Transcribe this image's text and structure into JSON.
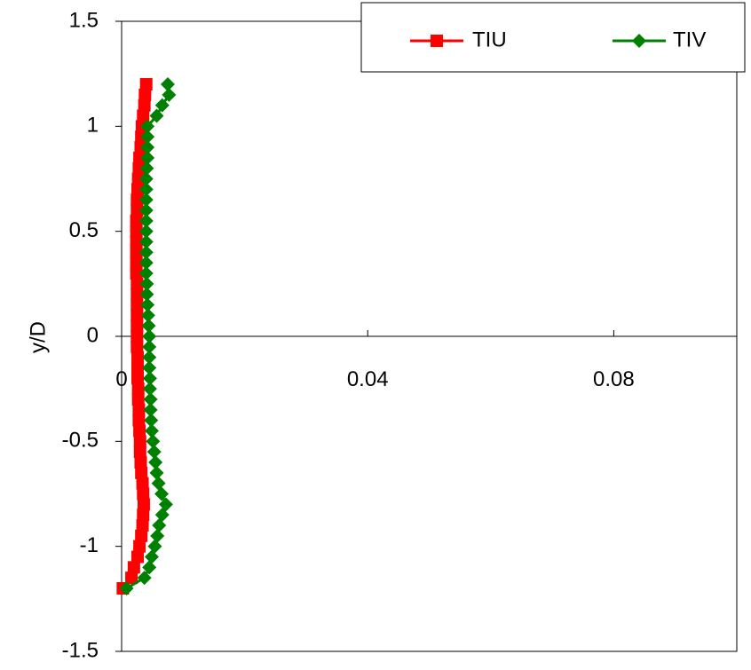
{
  "chart_data": {
    "type": "line",
    "title": "",
    "xlabel": "",
    "ylabel": "y/D",
    "xlim": [
      0,
      0.1
    ],
    "ylim": [
      -1.5,
      1.5
    ],
    "xticks": [
      {
        "value": 0,
        "label": "0"
      },
      {
        "value": 0.04,
        "label": "0.04"
      },
      {
        "value": 0.08,
        "label": "0.08"
      }
    ],
    "yticks": [
      {
        "value": 1.5,
        "label": "1.5"
      },
      {
        "value": 1,
        "label": "1"
      },
      {
        "value": 0.5,
        "label": "0.5"
      },
      {
        "value": 0,
        "label": "0"
      },
      {
        "value": -0.5,
        "label": "-0.5"
      },
      {
        "value": -1,
        "label": "-1"
      },
      {
        "value": -1.5,
        "label": "-1.5"
      }
    ],
    "grid": false,
    "legend": "top-right",
    "series": [
      {
        "name": "TIU",
        "color": "#ff0000",
        "marker": "square",
        "points": [
          [
            0.0002,
            -1.2
          ],
          [
            0.0016,
            -1.15
          ],
          [
            0.002,
            -1.1
          ],
          [
            0.0026,
            -1.05
          ],
          [
            0.0029,
            -1.0
          ],
          [
            0.0032,
            -0.95
          ],
          [
            0.0034,
            -0.9
          ],
          [
            0.0035,
            -0.85
          ],
          [
            0.0036,
            -0.8
          ],
          [
            0.0035,
            -0.75
          ],
          [
            0.0034,
            -0.7
          ],
          [
            0.0032,
            -0.65
          ],
          [
            0.0031,
            -0.6
          ],
          [
            0.003,
            -0.55
          ],
          [
            0.003,
            -0.5
          ],
          [
            0.0029,
            -0.45
          ],
          [
            0.0028,
            -0.4
          ],
          [
            0.0028,
            -0.35
          ],
          [
            0.0027,
            -0.3
          ],
          [
            0.0027,
            -0.25
          ],
          [
            0.0026,
            -0.2
          ],
          [
            0.0026,
            -0.15
          ],
          [
            0.0026,
            -0.1
          ],
          [
            0.0025,
            -0.05
          ],
          [
            0.0025,
            0.0
          ],
          [
            0.0025,
            0.05
          ],
          [
            0.0025,
            0.1
          ],
          [
            0.0025,
            0.15
          ],
          [
            0.0025,
            0.2
          ],
          [
            0.0025,
            0.25
          ],
          [
            0.0024,
            0.3
          ],
          [
            0.0024,
            0.35
          ],
          [
            0.0024,
            0.4
          ],
          [
            0.0024,
            0.45
          ],
          [
            0.0024,
            0.5
          ],
          [
            0.0024,
            0.55
          ],
          [
            0.0025,
            0.6
          ],
          [
            0.0025,
            0.65
          ],
          [
            0.0026,
            0.7
          ],
          [
            0.0027,
            0.75
          ],
          [
            0.0028,
            0.8
          ],
          [
            0.0029,
            0.85
          ],
          [
            0.0031,
            0.9
          ],
          [
            0.0032,
            0.95
          ],
          [
            0.0033,
            1.0
          ],
          [
            0.0035,
            1.05
          ],
          [
            0.0037,
            1.1
          ],
          [
            0.0038,
            1.15
          ],
          [
            0.004,
            1.2
          ]
        ]
      },
      {
        "name": "TIV",
        "color": "#008000",
        "marker": "diamond",
        "points": [
          [
            0.0008,
            -1.2
          ],
          [
            0.0037,
            -1.15
          ],
          [
            0.0045,
            -1.1
          ],
          [
            0.0049,
            -1.05
          ],
          [
            0.0054,
            -1.0
          ],
          [
            0.0058,
            -0.95
          ],
          [
            0.0061,
            -0.9
          ],
          [
            0.0066,
            -0.85
          ],
          [
            0.0072,
            -0.8
          ],
          [
            0.0065,
            -0.75
          ],
          [
            0.006,
            -0.7
          ],
          [
            0.0057,
            -0.65
          ],
          [
            0.0055,
            -0.6
          ],
          [
            0.0053,
            -0.55
          ],
          [
            0.0051,
            -0.5
          ],
          [
            0.0049,
            -0.45
          ],
          [
            0.0048,
            -0.4
          ],
          [
            0.0047,
            -0.35
          ],
          [
            0.0047,
            -0.3
          ],
          [
            0.0046,
            -0.25
          ],
          [
            0.0046,
            -0.2
          ],
          [
            0.0045,
            -0.15
          ],
          [
            0.0045,
            -0.1
          ],
          [
            0.0045,
            -0.05
          ],
          [
            0.0045,
            0.0
          ],
          [
            0.0044,
            0.05
          ],
          [
            0.0043,
            0.1
          ],
          [
            0.0042,
            0.15
          ],
          [
            0.0041,
            0.2
          ],
          [
            0.0041,
            0.25
          ],
          [
            0.004,
            0.3
          ],
          [
            0.004,
            0.35
          ],
          [
            0.004,
            0.4
          ],
          [
            0.004,
            0.45
          ],
          [
            0.004,
            0.5
          ],
          [
            0.004,
            0.55
          ],
          [
            0.004,
            0.6
          ],
          [
            0.004,
            0.65
          ],
          [
            0.004,
            0.7
          ],
          [
            0.004,
            0.75
          ],
          [
            0.0041,
            0.8
          ],
          [
            0.0042,
            0.85
          ],
          [
            0.0042,
            0.9
          ],
          [
            0.0042,
            0.95
          ],
          [
            0.0042,
            1.0
          ],
          [
            0.0057,
            1.05
          ],
          [
            0.0066,
            1.1
          ],
          [
            0.0077,
            1.15
          ],
          [
            0.0075,
            1.2
          ]
        ]
      }
    ]
  }
}
